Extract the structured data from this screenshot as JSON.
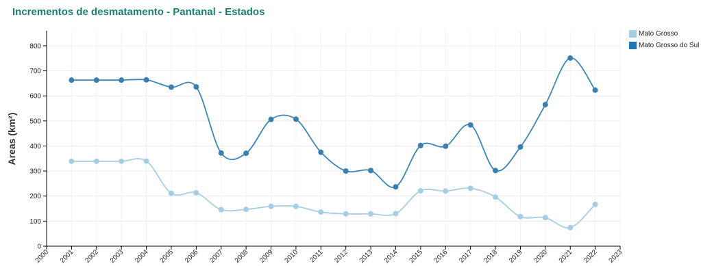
{
  "title": "Incrementos de desmatamento - Pantanal - Estados",
  "legend": [
    {
      "label": "Mato Grosso",
      "color": "#a6cee3"
    },
    {
      "label": "Mato Grosso do Sul",
      "color": "#1f78b4"
    }
  ],
  "chart_data": {
    "type": "line",
    "title": "Incrementos de desmatamento - Pantanal - Estados",
    "xlabel": "",
    "ylabel": "Areas (km²)",
    "xlim": [
      2000,
      2023
    ],
    "ylim": [
      0,
      860
    ],
    "x_ticks": [
      "2000",
      "2001",
      "2002",
      "2003",
      "2004",
      "2005",
      "2006",
      "2007",
      "2008",
      "2009",
      "2010",
      "2011",
      "2012",
      "2013",
      "2014",
      "2015",
      "2016",
      "2017",
      "2018",
      "2019",
      "2020",
      "2021",
      "2022",
      "2023"
    ],
    "y_ticks": [
      "0",
      "100",
      "200",
      "300",
      "400",
      "500",
      "600",
      "700",
      "800"
    ],
    "x": [
      2001,
      2002,
      2003,
      2004,
      2005,
      2006,
      2007,
      2008,
      2009,
      2010,
      2011,
      2012,
      2013,
      2014,
      2015,
      2016,
      2017,
      2018,
      2019,
      2020,
      2021,
      2022
    ],
    "grid": true,
    "legend_position": "top-right",
    "series": [
      {
        "name": "Mato Grosso",
        "color": "#a6cee3",
        "values": [
          339,
          339,
          339,
          340,
          211,
          213,
          146,
          147,
          159,
          159,
          136,
          129,
          129,
          130,
          221,
          220,
          231,
          196,
          118,
          114,
          74,
          167
        ]
      },
      {
        "name": "Mato Grosso do Sul",
        "color": "#1f78b4",
        "values": [
          663,
          663,
          663,
          664,
          635,
          636,
          372,
          371,
          506,
          507,
          375,
          300,
          302,
          237,
          402,
          399,
          484,
          302,
          396,
          565,
          751,
          623
        ]
      }
    ]
  }
}
